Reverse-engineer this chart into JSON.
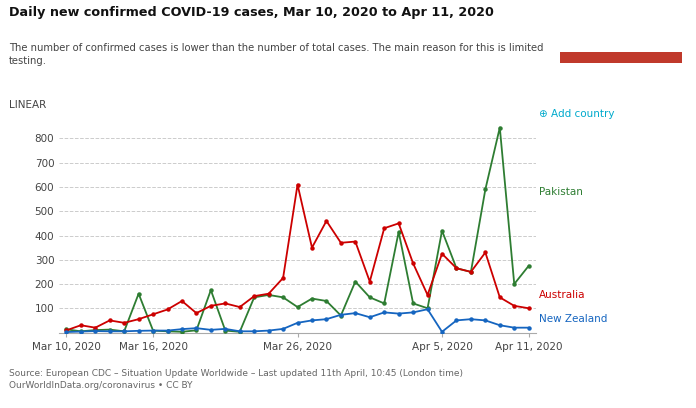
{
  "title": "Daily new confirmed COVID-19 cases, Mar 10, 2020 to Apr 11, 2020",
  "subtitle": "The number of confirmed cases is lower than the number of total cases. The main reason for this is limited\ntesting.",
  "scale_label": "LINEAR",
  "source": "Source: European CDC – Situation Update Worldwide – Last updated 11th April, 10:45 (London time)\nOurWorldInData.org/coronavirus • CC BY",
  "ylim": [
    0,
    900
  ],
  "yticks": [
    0,
    100,
    200,
    300,
    400,
    500,
    600,
    700,
    800
  ],
  "background_color": "#ffffff",
  "grid_color": "#cccccc",
  "logo_bg": "#1a3358",
  "logo_red": "#c0392b",
  "australia_color": "#cc0000",
  "pakistan_color": "#2e7d32",
  "newzealand_color": "#1565c0",
  "australia": [
    9,
    30,
    20,
    50,
    40,
    55,
    75,
    95,
    130,
    80,
    110,
    120,
    105,
    150,
    160,
    225,
    610,
    350,
    460,
    370,
    375,
    210,
    430,
    450,
    285,
    155,
    325,
    265,
    250,
    330,
    145,
    110,
    100
  ],
  "pakistan": [
    13,
    5,
    10,
    12,
    5,
    160,
    8,
    5,
    3,
    9,
    175,
    8,
    3,
    145,
    155,
    145,
    105,
    140,
    130,
    70,
    210,
    145,
    120,
    415,
    120,
    100,
    420,
    265,
    250,
    590,
    845,
    200,
    275
  ],
  "newzealand": [
    2,
    4,
    6,
    5,
    5,
    7,
    8,
    8,
    14,
    18,
    11,
    15,
    5,
    5,
    8,
    15,
    40,
    50,
    55,
    73,
    80,
    63,
    83,
    78,
    83,
    96,
    3,
    50,
    55,
    50,
    30,
    20,
    20
  ],
  "xtick_labels": [
    "Mar 10, 2020",
    "Mar 16, 2020",
    "Mar 26, 2020",
    "Apr 5, 2020",
    "Apr 11, 2020"
  ],
  "xtick_positions": [
    0,
    6,
    16,
    26,
    32
  ]
}
